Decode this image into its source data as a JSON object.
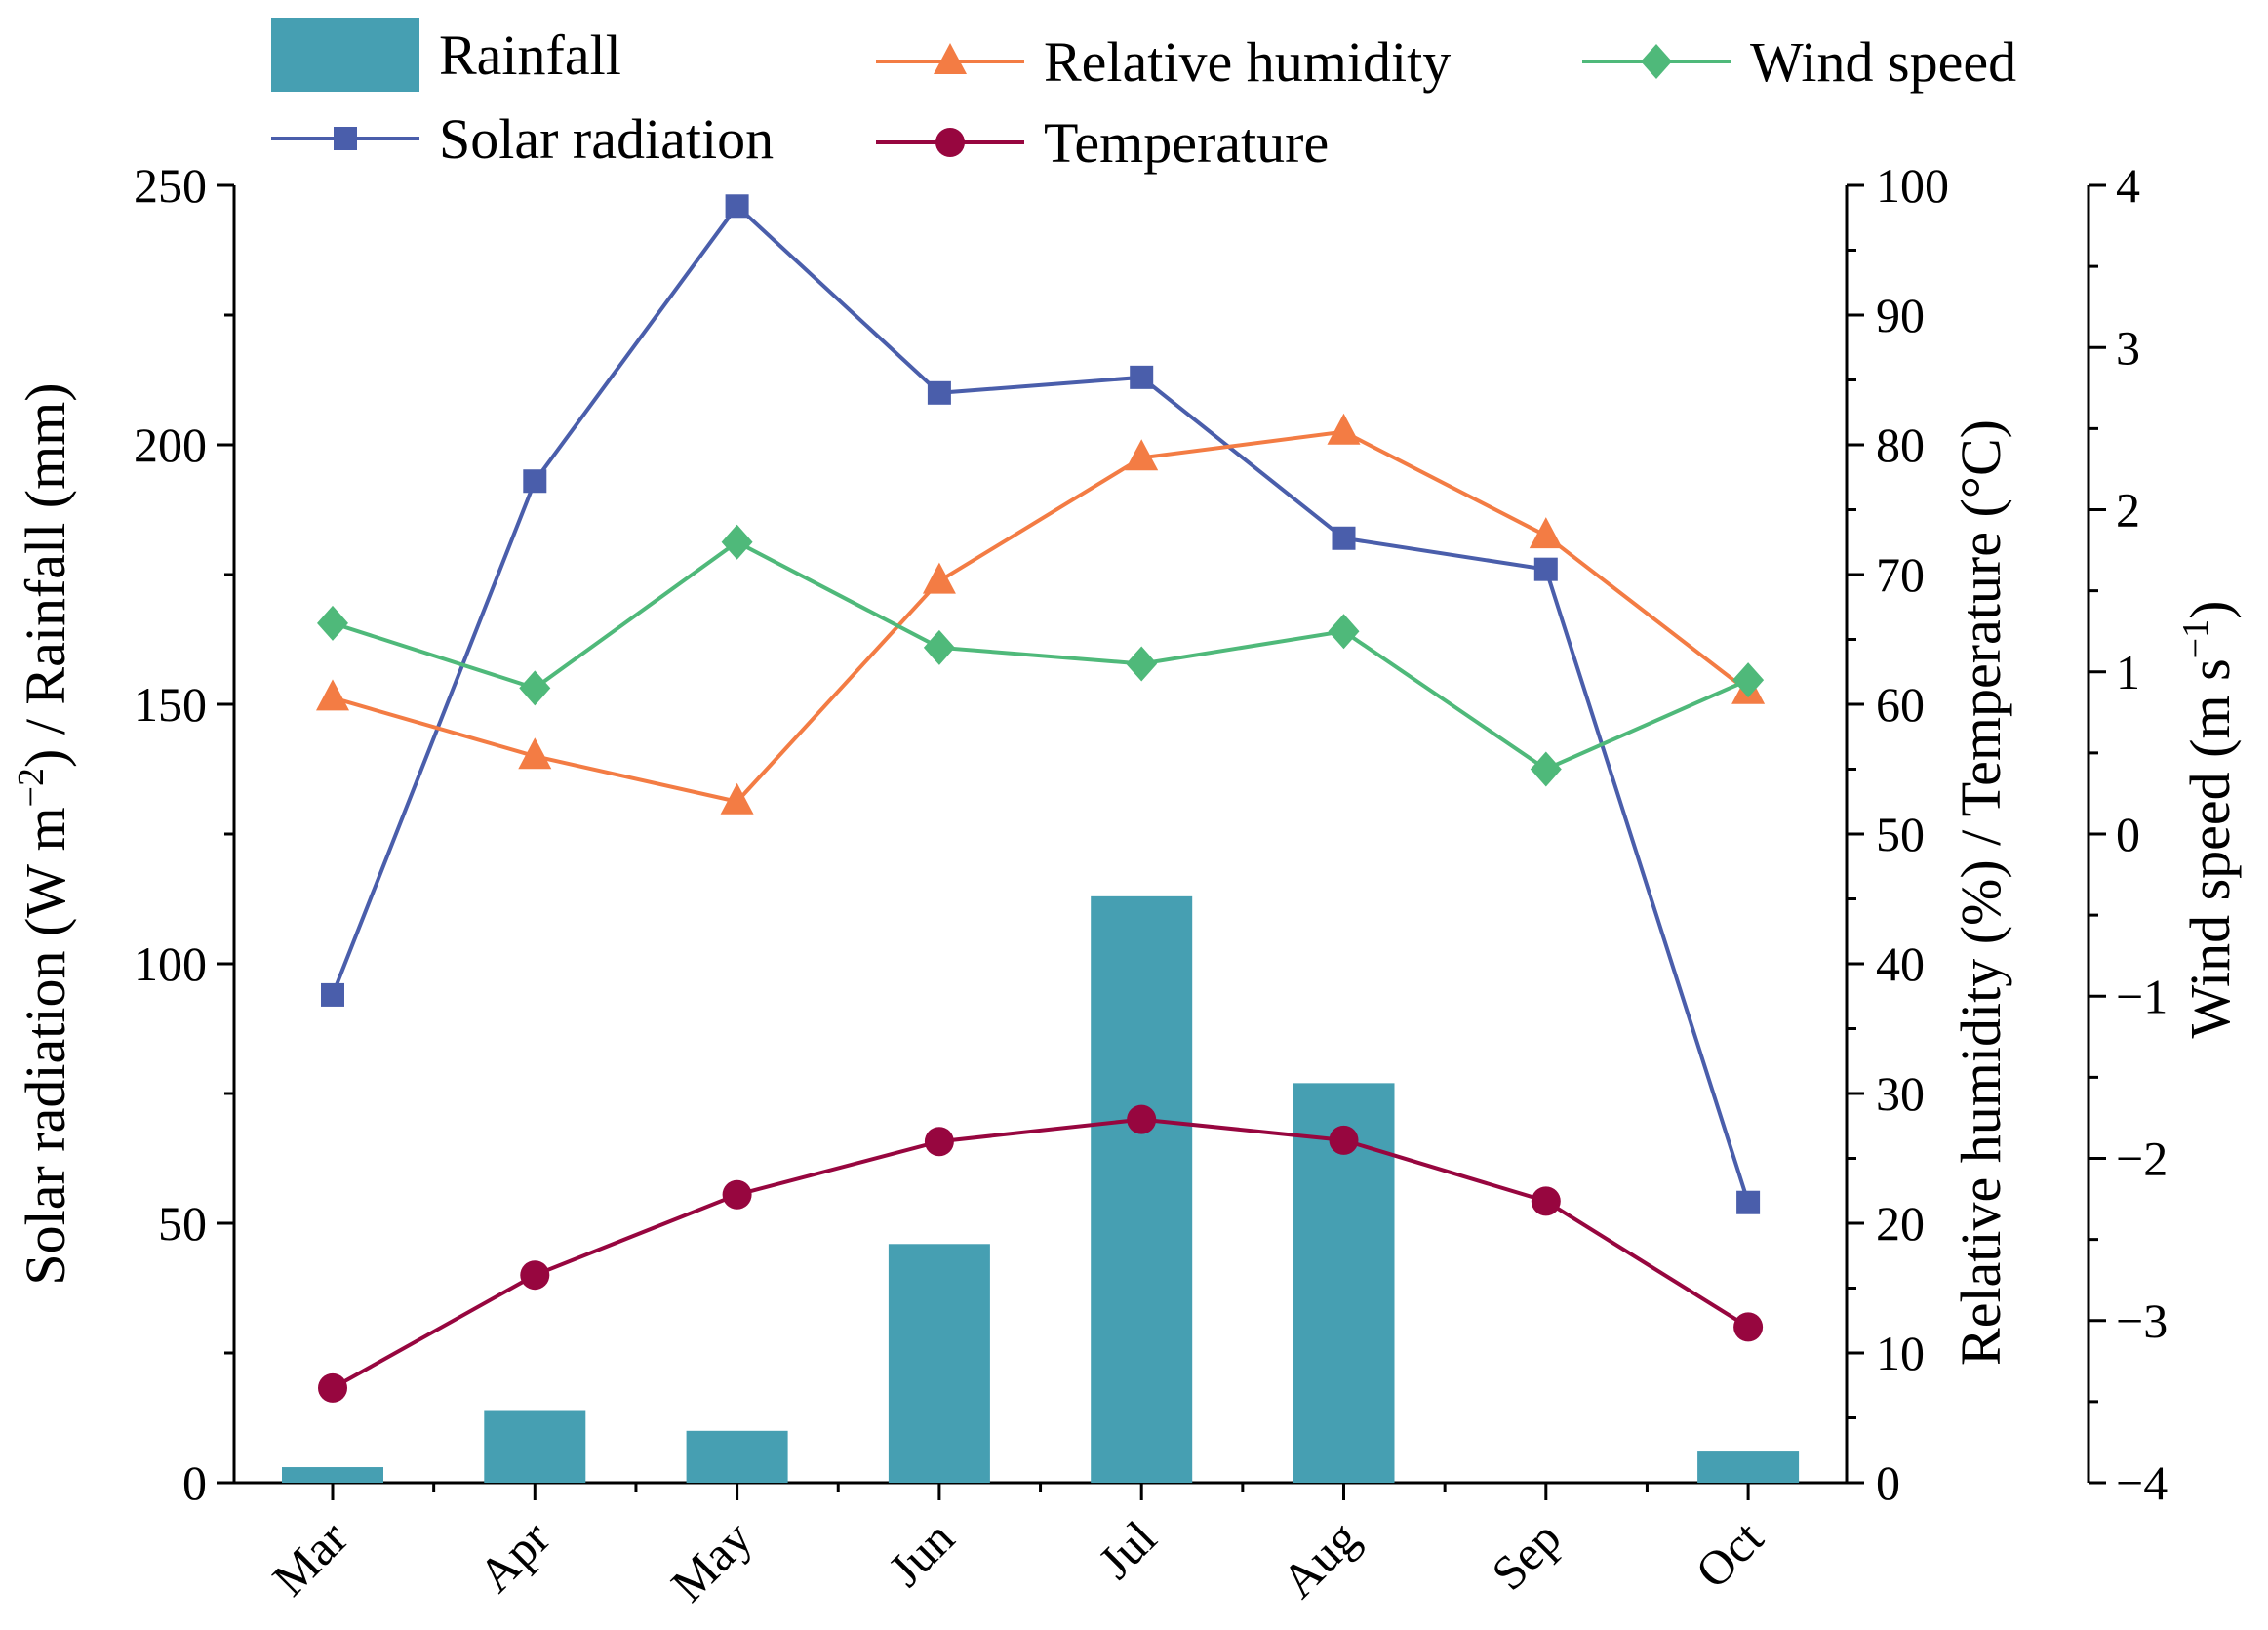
{
  "chart_data": {
    "type": "bar",
    "categories": [
      "Mar",
      "Apr",
      "May",
      "Jun",
      "Jul",
      "Aug",
      "Sep",
      "Oct"
    ],
    "series": [
      {
        "name": "Rainfall",
        "kind": "bar",
        "axis": "left",
        "color": "#469fb2",
        "values": [
          3,
          14,
          10,
          46,
          113,
          77,
          0,
          6
        ]
      },
      {
        "name": "Solar radiation",
        "kind": "line",
        "axis": "left",
        "color": "#4a5eab",
        "marker": "square",
        "values": [
          94,
          193,
          246,
          210,
          213,
          182,
          176,
          54
        ]
      },
      {
        "name": "Relative humidity",
        "kind": "line",
        "axis": "right1",
        "color": "#f37c44",
        "marker": "triangle",
        "values": [
          60.5,
          56,
          52.5,
          69.5,
          79,
          81,
          73,
          61
        ]
      },
      {
        "name": "Temperature",
        "kind": "line",
        "axis": "right1",
        "color": "#97063f",
        "marker": "circle",
        "values": [
          7.3,
          16,
          22.2,
          26.3,
          28,
          26.4,
          21.7,
          12
        ]
      },
      {
        "name": "Wind speed",
        "kind": "line",
        "axis": "right2",
        "color": "#4fb97a",
        "marker": "diamond",
        "values": [
          1.3,
          0.9,
          1.8,
          1.15,
          1.05,
          1.25,
          0.4,
          0.95
        ]
      }
    ],
    "axes": {
      "left": {
        "label_pre": "Solar radiation (W m",
        "label_sup": "−2",
        "label_post": ") / Rainfall (mm)",
        "ylim": [
          0,
          250
        ],
        "ticks": [
          "0",
          "50",
          "100",
          "150",
          "200",
          "250"
        ]
      },
      "right1": {
        "label": "Relative humidity (%) / Temperature (°C)",
        "ylim": [
          0,
          100
        ],
        "ticks": [
          "0",
          "10",
          "20",
          "30",
          "40",
          "50",
          "60",
          "70",
          "80",
          "90",
          "100"
        ]
      },
      "right2": {
        "label_pre": "Wind speed (m s",
        "label_sup": "−1",
        "label_post": ")",
        "ylim": [
          -4,
          4
        ],
        "ticks": [
          "−4",
          "−3",
          "−2",
          "−1",
          "0",
          "1",
          "2",
          "3",
          "4"
        ]
      }
    },
    "legend": {
      "position": "top",
      "entries": [
        "Rainfall",
        "Relative humidity",
        "Wind speed",
        "Solar radiation",
        "Temperature"
      ]
    },
    "grid": false
  }
}
